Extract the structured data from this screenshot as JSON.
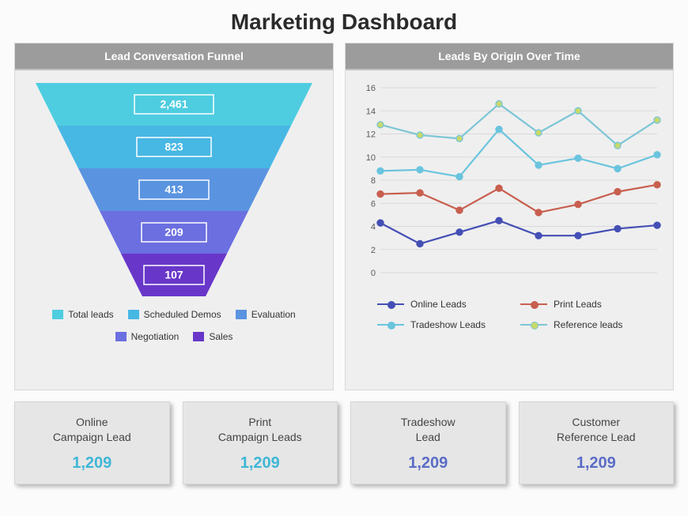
{
  "title": "Marketing Dashboard",
  "funnel": {
    "header": "Lead Conversation Funnel",
    "stages": [
      {
        "label": "Total leads",
        "value": "2,461",
        "color": "#4ecde0"
      },
      {
        "label": "Scheduled Demos",
        "value": "823",
        "color": "#47b7e4"
      },
      {
        "label": "Evaluation",
        "value": "413",
        "color": "#5a93e0"
      },
      {
        "label": "Negotiation",
        "value": "209",
        "color": "#6b6fe0"
      },
      {
        "label": "Sales",
        "value": "107",
        "color": "#6837c9"
      }
    ]
  },
  "linechart": {
    "header": "Leads By Origin Over Time",
    "ylim": [
      0,
      16
    ],
    "ytick_step": 2,
    "gridline_color": "#d9d9d9",
    "axis_text_color": "#595959",
    "axis_fontsize": 11,
    "series": [
      {
        "name": "Online Leads",
        "color": "#444fb5",
        "marker_fill": "#444fb5",
        "values": [
          4.3,
          2.5,
          3.5,
          4.5,
          3.2,
          3.2,
          3.8,
          4.1
        ]
      },
      {
        "name": "Print Leads",
        "color": "#c85f4f",
        "marker_fill": "#c85f4f",
        "values": [
          6.8,
          6.9,
          5.4,
          7.3,
          5.2,
          5.9,
          7.0,
          7.6
        ]
      },
      {
        "name": "Tradeshow Leads",
        "color": "#6ac4de",
        "marker_fill": "#6ac4de",
        "values": [
          8.8,
          8.9,
          8.3,
          12.4,
          9.3,
          9.9,
          9.0,
          10.2
        ]
      },
      {
        "name": "Reference leads",
        "color": "#7cc6d6",
        "marker_fill": "#c7d96a",
        "values": [
          12.8,
          11.9,
          11.6,
          14.6,
          12.1,
          14.0,
          11.0,
          13.2
        ]
      }
    ]
  },
  "cards": [
    {
      "label": "Online\nCampaign Lead",
      "value": "1,209",
      "value_color": "#3fb7d6"
    },
    {
      "label": "Print\nCampaign Leads",
      "value": "1,209",
      "value_color": "#3fb7d6"
    },
    {
      "label": "Tradeshow\nLead",
      "value": "1,209",
      "value_color": "#5b6cc6"
    },
    {
      "label": "Customer\nReference Lead",
      "value": "1,209",
      "value_color": "#5b6cc6"
    }
  ]
}
